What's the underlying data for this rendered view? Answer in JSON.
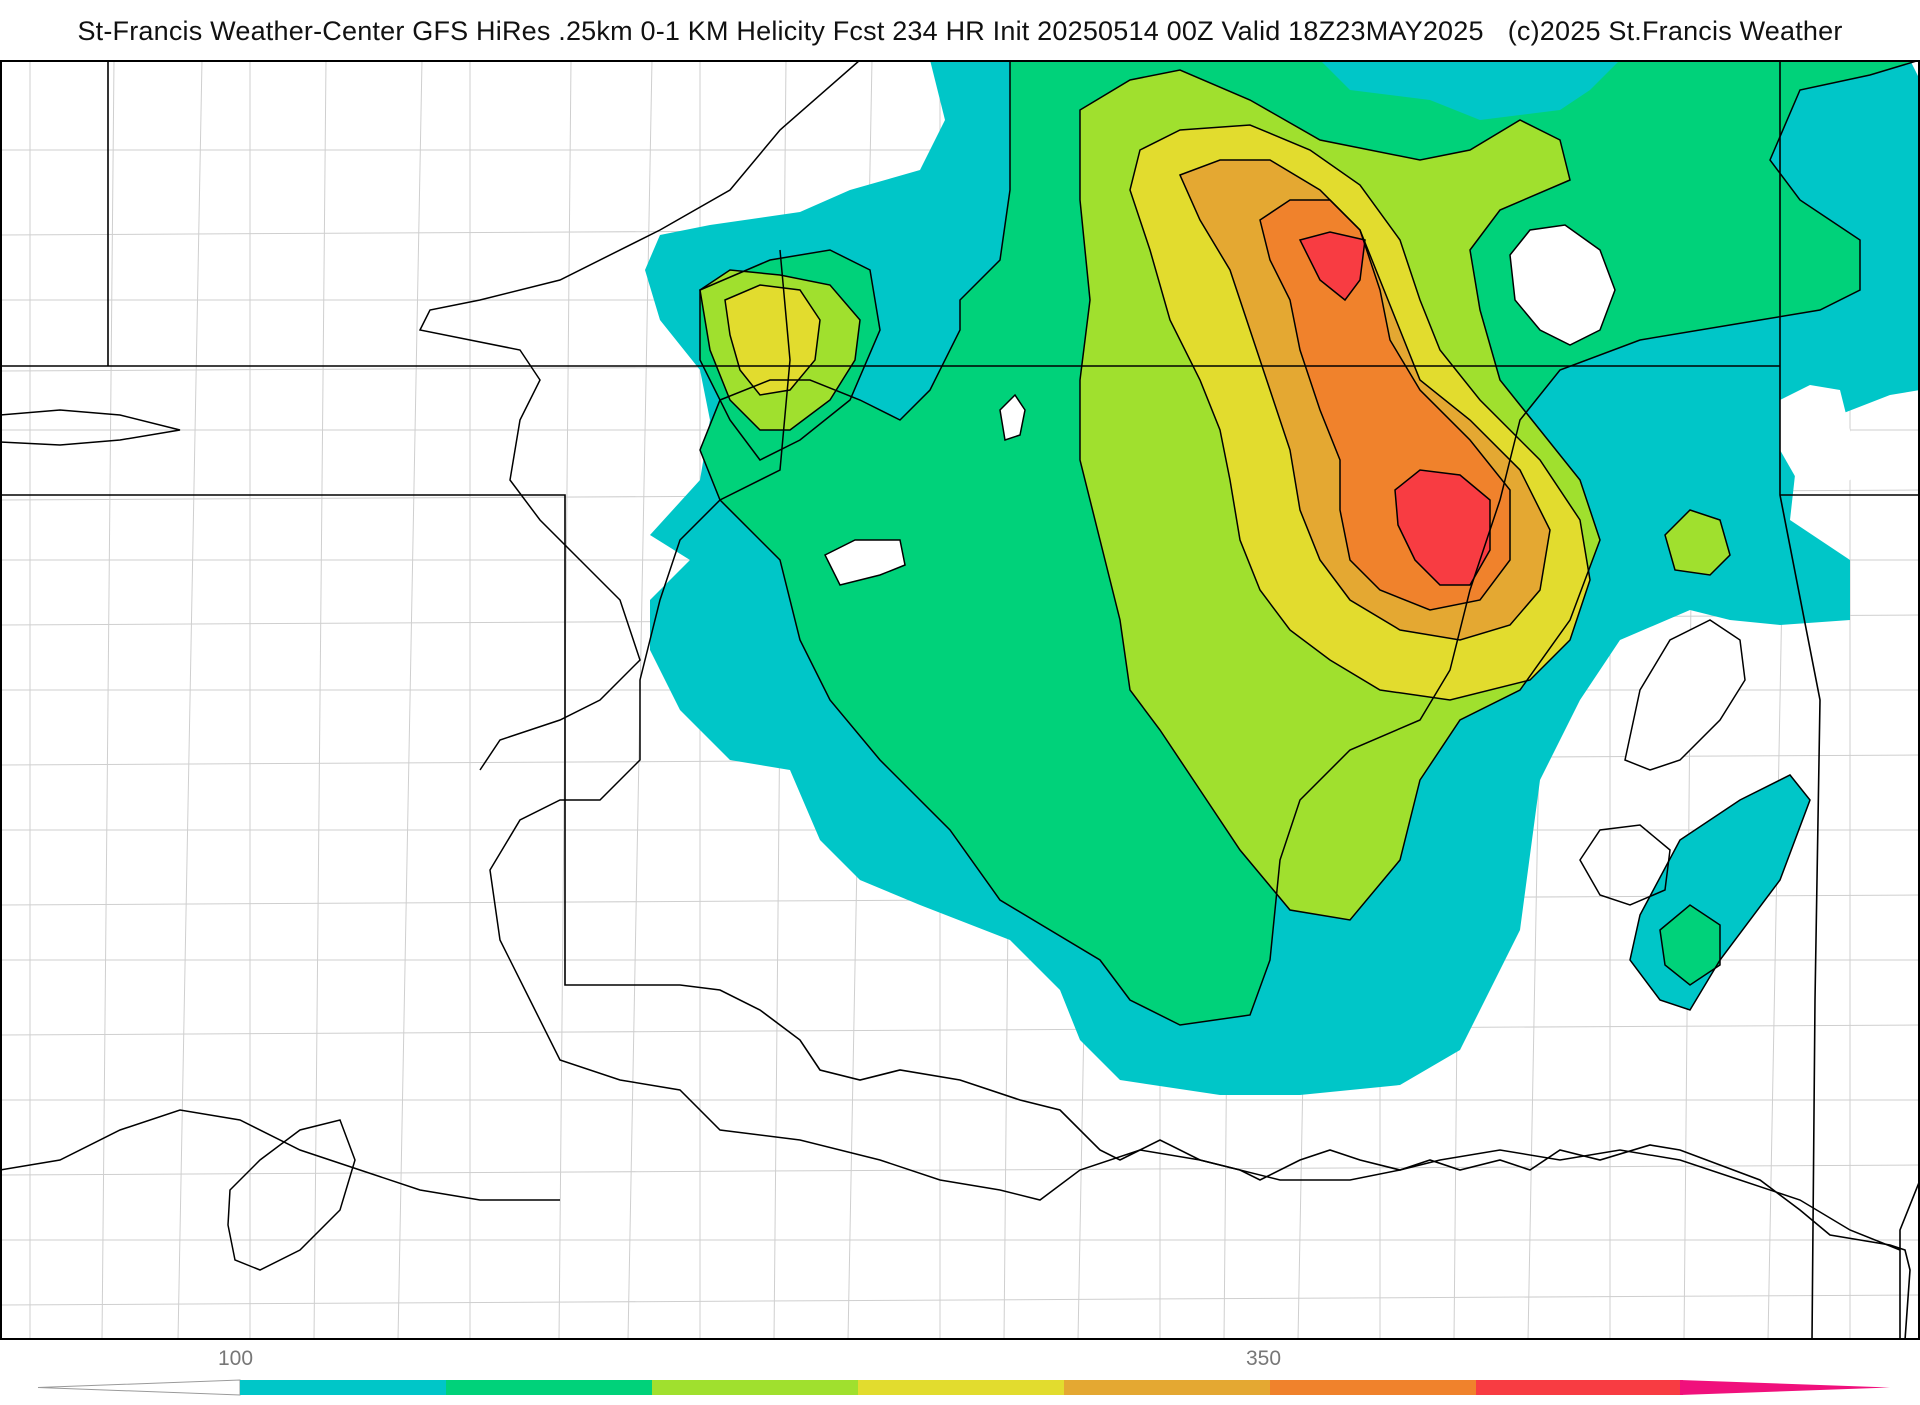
{
  "header": {
    "title": "St-Francis Weather-Center GFS HiRes .25km 0-1 KM Helicity Fcst 234 HR Init 20250514 00Z  Valid 18Z23MAY2025",
    "copyright": "(c)2025 St.Francis Weather"
  },
  "map": {
    "field": "0-1 KM Helicity",
    "contour_color": "#000000",
    "boundary_color": "#000000",
    "county_line_color": "#c8c8c8"
  },
  "colorbar": {
    "tick_labels": [
      "100",
      "350"
    ],
    "colors": [
      "#00c6c8",
      "#00d27a",
      "#a0e02e",
      "#e2dc2e",
      "#e4a832",
      "#f0822c",
      "#f83c42",
      "#f0107c"
    ]
  }
}
